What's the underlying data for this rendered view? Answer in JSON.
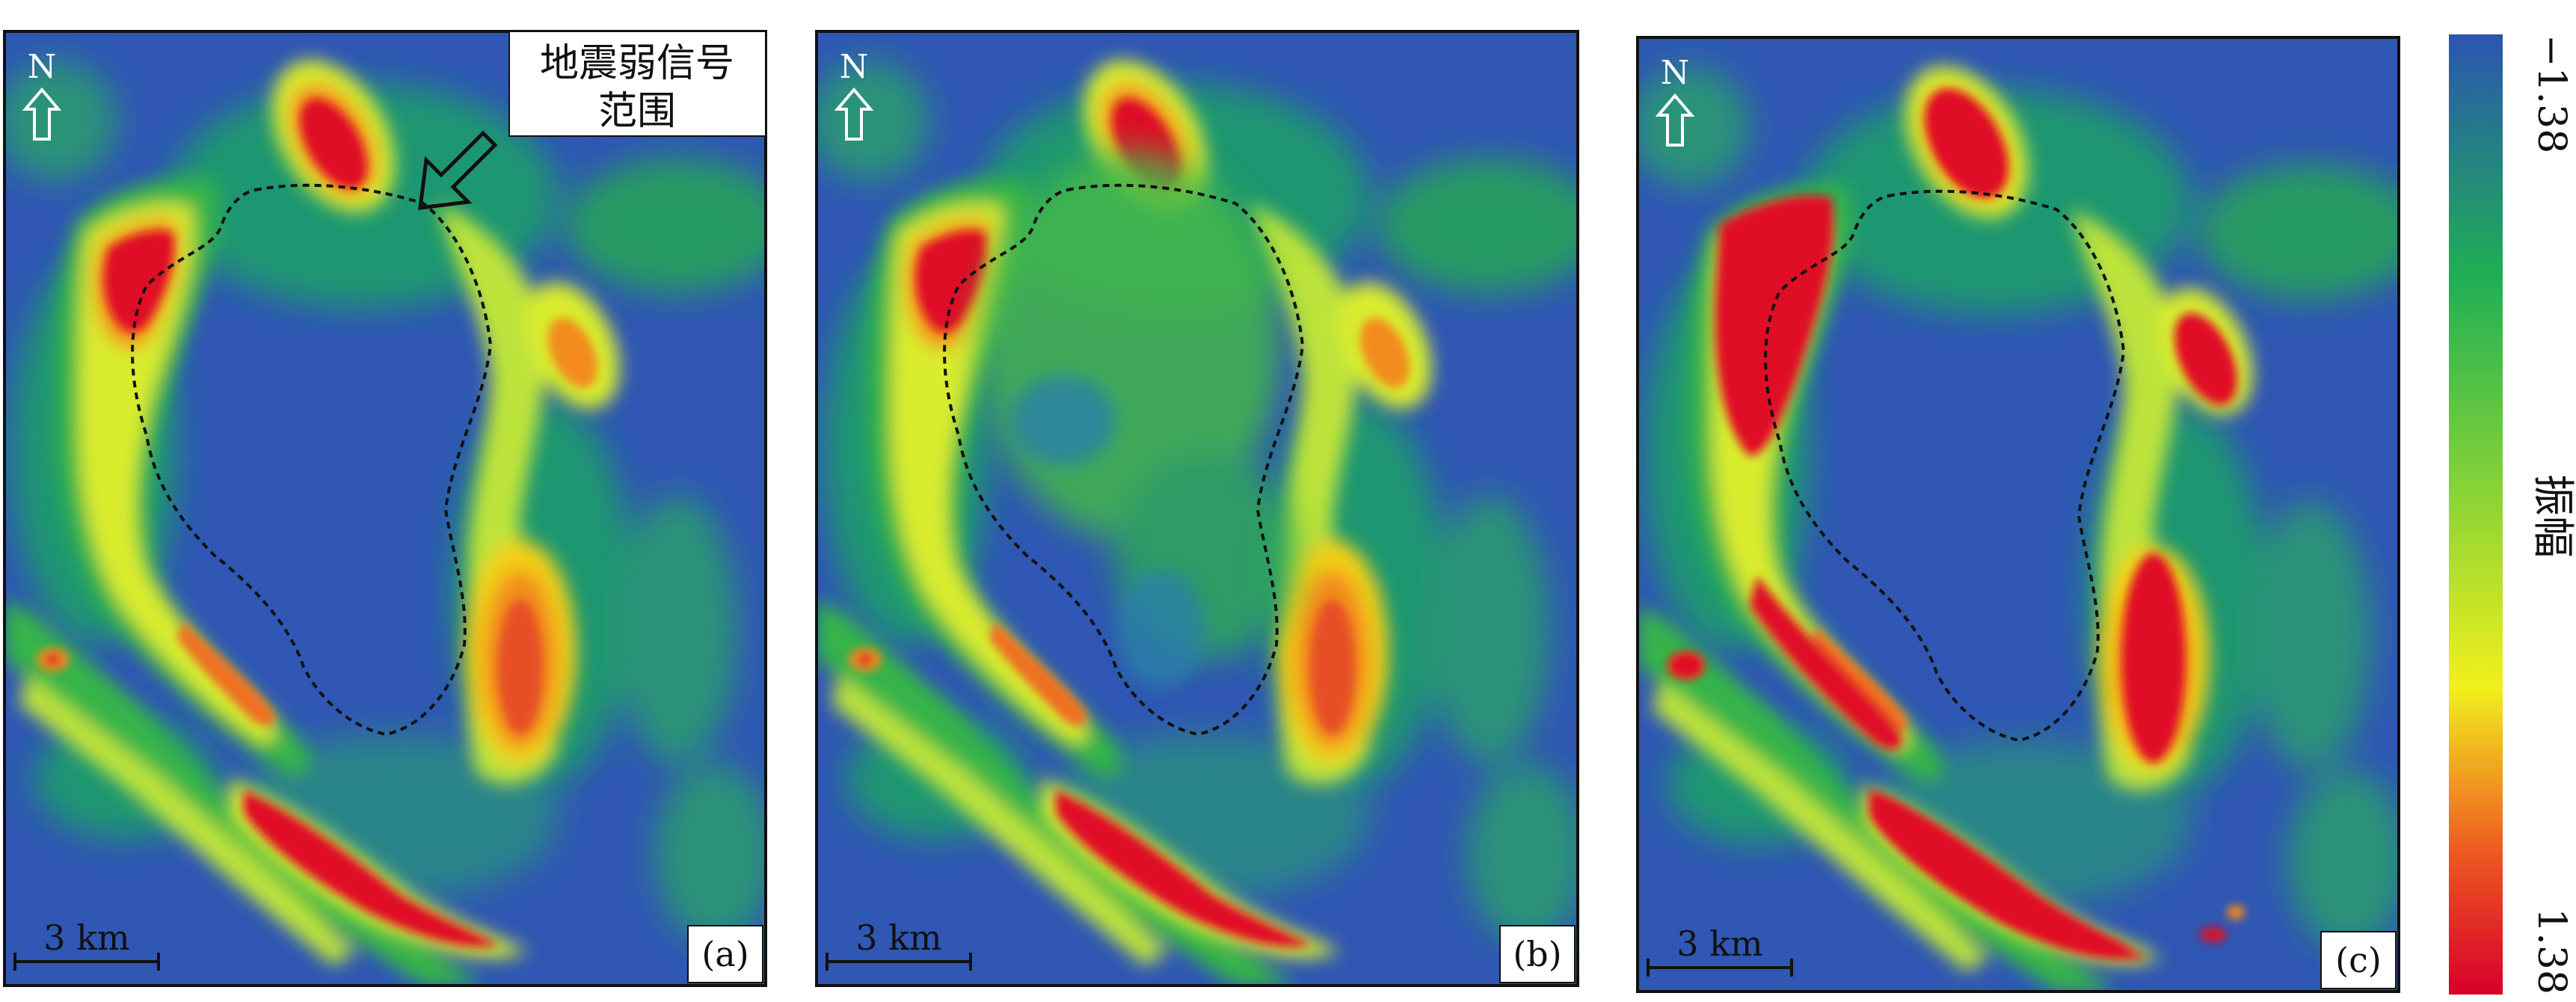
{
  "panels": [
    {
      "label": "(a)",
      "scale": "3 km",
      "north": "N"
    },
    {
      "label": "(b)",
      "scale": "3 km",
      "north": "N"
    },
    {
      "label": "(c)",
      "scale": "3 km",
      "north": "N"
    }
  ],
  "annotation": {
    "line1": "地震弱信号",
    "line2": "范围"
  },
  "colorbar": {
    "title": "振幅",
    "max_label": "1.38",
    "min_label": "−1.38",
    "colors": [
      "#d7002a",
      "#f08a1c",
      "#f2f01c",
      "#7bcf3a",
      "#1fae55",
      "#2b55b0"
    ]
  }
}
